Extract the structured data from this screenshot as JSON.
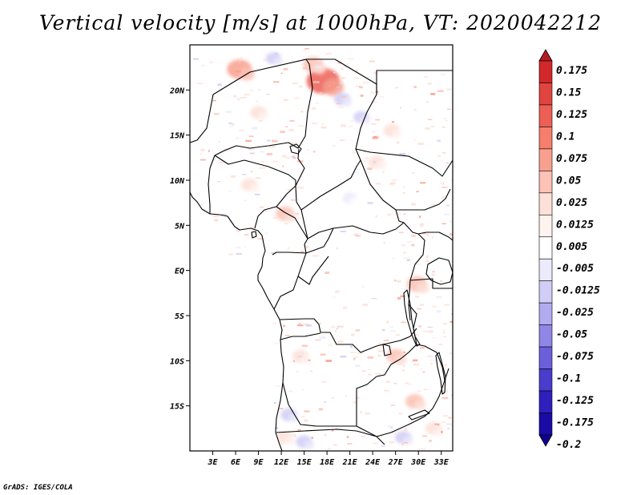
{
  "chart_data": {
    "type": "heatmap",
    "title": "Vertical velocity [m/s] at 1000hPa, VT: 2020042212",
    "variable": "Vertical velocity",
    "units": "m/s",
    "level": "1000hPa",
    "valid_time": "2020042212",
    "xlim": [
      0,
      34.5
    ],
    "ylim": [
      -20,
      25
    ],
    "x_ticks": [
      {
        "value": 3,
        "label": "3E"
      },
      {
        "value": 6,
        "label": "6E"
      },
      {
        "value": 9,
        "label": "9E"
      },
      {
        "value": 12,
        "label": "12E"
      },
      {
        "value": 15,
        "label": "15E"
      },
      {
        "value": 18,
        "label": "18E"
      },
      {
        "value": 21,
        "label": "21E"
      },
      {
        "value": 24,
        "label": "24E"
      },
      {
        "value": 27,
        "label": "27E"
      },
      {
        "value": 30,
        "label": "30E"
      },
      {
        "value": 33,
        "label": "33E"
      }
    ],
    "y_ticks": [
      {
        "value": 20,
        "label": "20N"
      },
      {
        "value": 15,
        "label": "15N"
      },
      {
        "value": 10,
        "label": "10N"
      },
      {
        "value": 5,
        "label": "5N"
      },
      {
        "value": 0,
        "label": "EQ"
      },
      {
        "value": -5,
        "label": "5S"
      },
      {
        "value": -10,
        "label": "10S"
      },
      {
        "value": -15,
        "label": "15S"
      }
    ],
    "colorbar": {
      "levels": [
        "0.175",
        "0.15",
        "0.125",
        "0.1",
        "0.075",
        "0.05",
        "0.025",
        "0.0125",
        "0.005",
        "-0.005",
        "-0.0125",
        "-0.025",
        "-0.05",
        "-0.075",
        "-0.1",
        "-0.125",
        "-0.175",
        "-0.2"
      ],
      "colors": [
        "#b41e23",
        "#d2282a",
        "#e0443e",
        "#ec5f55",
        "#f57e6c",
        "#f8a08e",
        "#fbc2b5",
        "#fde0d8",
        "#fff3ef",
        "#ffffff",
        "#ecebfb",
        "#d0cdf6",
        "#b1acef",
        "#8f86e6",
        "#6b60da",
        "#4a3ccd",
        "#2f1fbd",
        "#1a0aa6",
        "#100090"
      ]
    },
    "features": [
      {
        "name": "positive",
        "lon": 6.5,
        "lat": 22.3,
        "value": 0.06
      },
      {
        "name": "positive",
        "lon": 17.5,
        "lat": 21.0,
        "value": 0.1
      },
      {
        "name": "positive",
        "lon": 16.2,
        "lat": 22.8,
        "value": 0.04
      },
      {
        "name": "positive",
        "lon": 9.0,
        "lat": 17.5,
        "value": 0.02
      },
      {
        "name": "positive",
        "lon": 7.8,
        "lat": 9.5,
        "value": 0.02
      },
      {
        "name": "positive",
        "lon": 12.5,
        "lat": 6.3,
        "value": 0.03
      },
      {
        "name": "positive",
        "lon": 26.5,
        "lat": 15.5,
        "value": 0.02
      },
      {
        "name": "positive",
        "lon": 24.5,
        "lat": 12.0,
        "value": 0.02
      },
      {
        "name": "positive",
        "lon": 29.8,
        "lat": -1.5,
        "value": 0.04
      },
      {
        "name": "positive",
        "lon": 27.0,
        "lat": -9.5,
        "value": 0.03
      },
      {
        "name": "positive",
        "lon": 29.5,
        "lat": -14.5,
        "value": 0.03
      },
      {
        "name": "positive",
        "lon": 14.5,
        "lat": -9.5,
        "value": 0.02
      },
      {
        "name": "positive",
        "lon": 12.5,
        "lat": -18.5,
        "value": 0.02
      },
      {
        "name": "positive",
        "lon": 32.0,
        "lat": -17.5,
        "value": 0.02
      },
      {
        "name": "negative",
        "lon": 20.0,
        "lat": 19.0,
        "value": -0.02
      },
      {
        "name": "negative",
        "lon": 22.5,
        "lat": 17.0,
        "value": -0.015
      },
      {
        "name": "negative",
        "lon": 11.0,
        "lat": 23.5,
        "value": -0.015
      },
      {
        "name": "negative",
        "lon": 13.0,
        "lat": -16.0,
        "value": -0.02
      },
      {
        "name": "negative",
        "lon": 15.0,
        "lat": -19.0,
        "value": -0.02
      },
      {
        "name": "negative",
        "lon": 28.0,
        "lat": -18.5,
        "value": -0.02
      },
      {
        "name": "negative",
        "lon": 21.0,
        "lat": 8.0,
        "value": -0.01
      }
    ]
  },
  "credit": "GrADS: IGES/COLA"
}
